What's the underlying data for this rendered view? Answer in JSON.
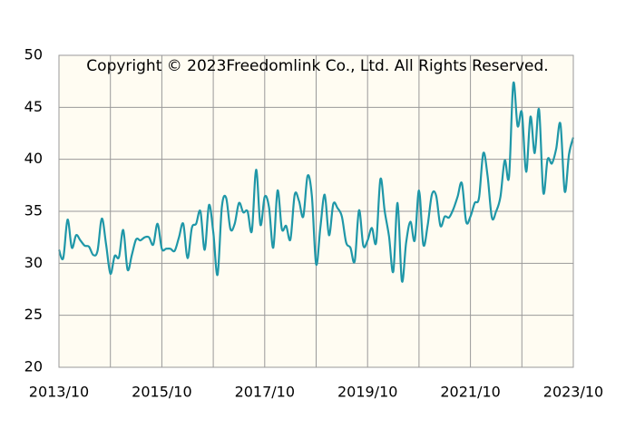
{
  "chart_data": {
    "type": "line",
    "annotation": "Copyright © 2023Freedomlink Co., Ltd. All Rights Reserved.",
    "x": [
      "2013/10",
      "2013/11",
      "2013/12",
      "2014/01",
      "2014/02",
      "2014/03",
      "2014/04",
      "2014/05",
      "2014/06",
      "2014/07",
      "2014/08",
      "2014/09",
      "2014/10",
      "2014/11",
      "2014/12",
      "2015/01",
      "2015/02",
      "2015/03",
      "2015/04",
      "2015/05",
      "2015/06",
      "2015/07",
      "2015/08",
      "2015/09",
      "2015/10",
      "2015/11",
      "2015/12",
      "2016/01",
      "2016/02",
      "2016/03",
      "2016/04",
      "2016/05",
      "2016/06",
      "2016/07",
      "2016/08",
      "2016/09",
      "2016/10",
      "2016/11",
      "2016/12",
      "2017/01",
      "2017/02",
      "2017/03",
      "2017/04",
      "2017/05",
      "2017/06",
      "2017/07",
      "2017/08",
      "2017/09",
      "2017/10",
      "2017/11",
      "2017/12",
      "2018/01",
      "2018/02",
      "2018/03",
      "2018/04",
      "2018/05",
      "2018/06",
      "2018/07",
      "2018/08",
      "2018/09",
      "2018/10",
      "2018/11",
      "2018/12",
      "2019/01",
      "2019/02",
      "2019/03",
      "2019/04",
      "2019/05",
      "2019/06",
      "2019/07",
      "2019/08",
      "2019/09",
      "2019/10",
      "2019/11",
      "2019/12",
      "2020/01",
      "2020/02",
      "2020/03",
      "2020/04",
      "2020/05",
      "2020/06",
      "2020/07",
      "2020/08",
      "2020/09",
      "2020/10",
      "2020/11",
      "2020/12",
      "2021/01",
      "2021/02",
      "2021/03",
      "2021/04",
      "2021/05",
      "2021/06",
      "2021/07",
      "2021/08",
      "2021/09",
      "2021/10",
      "2021/11",
      "2021/12",
      "2022/01",
      "2022/02",
      "2022/03",
      "2022/04",
      "2022/05",
      "2022/06",
      "2022/07",
      "2022/08",
      "2022/09",
      "2022/10",
      "2022/11",
      "2022/12",
      "2023/01",
      "2023/02",
      "2023/03",
      "2023/04",
      "2023/05",
      "2023/06",
      "2023/07",
      "2023/08",
      "2023/09",
      "2023/10"
    ],
    "series": [
      {
        "color": "#1f97a8",
        "values": [
          31.3,
          30.5,
          34.2,
          31.5,
          32.7,
          32.2,
          31.7,
          31.6,
          30.8,
          31.2,
          34.3,
          31.8,
          29.0,
          30.7,
          30.6,
          33.2,
          29.4,
          30.8,
          32.3,
          32.2,
          32.5,
          32.5,
          31.8,
          33.8,
          31.4,
          31.4,
          31.4,
          31.2,
          32.5,
          33.8,
          30.5,
          33.4,
          33.8,
          35.0,
          31.3,
          35.6,
          33.0,
          28.9,
          35.4,
          36.3,
          33.3,
          33.8,
          35.8,
          34.9,
          35.0,
          33.1,
          39.0,
          33.7,
          36.4,
          35.4,
          31.5,
          37.0,
          33.3,
          33.6,
          32.3,
          36.6,
          36.0,
          34.5,
          38.4,
          36.5,
          29.9,
          33.5,
          36.6,
          32.7,
          35.7,
          35.3,
          34.5,
          32.0,
          31.5,
          30.2,
          35.1,
          31.7,
          32.2,
          33.4,
          32.0,
          38.1,
          35.0,
          32.6,
          29.2,
          35.8,
          28.3,
          32.0,
          34.0,
          32.2,
          37.0,
          31.8,
          33.6,
          36.6,
          36.5,
          33.6,
          34.5,
          34.4,
          35.2,
          36.4,
          37.7,
          34.0,
          34.5,
          35.8,
          36.3,
          40.6,
          38.4,
          34.4,
          35.0,
          36.4,
          39.9,
          38.3,
          47.3,
          43.2,
          44.5,
          38.8,
          44.1,
          40.6,
          44.8,
          36.8,
          40.0,
          39.6,
          41.0,
          43.4,
          36.9,
          40.5,
          42.1
        ]
      }
    ],
    "ylim": [
      20,
      50
    ],
    "yticks": [
      20,
      25,
      30,
      35,
      40,
      45,
      50
    ],
    "xticks": [
      "2013/10",
      "2015/10",
      "2017/10",
      "2019/10",
      "2021/10",
      "2023/10"
    ],
    "xgrid": [
      "2014/10",
      "2016/10",
      "2018/10",
      "2020/10",
      "2022/10"
    ],
    "grid": true,
    "plot_background": "#fffcf2"
  }
}
